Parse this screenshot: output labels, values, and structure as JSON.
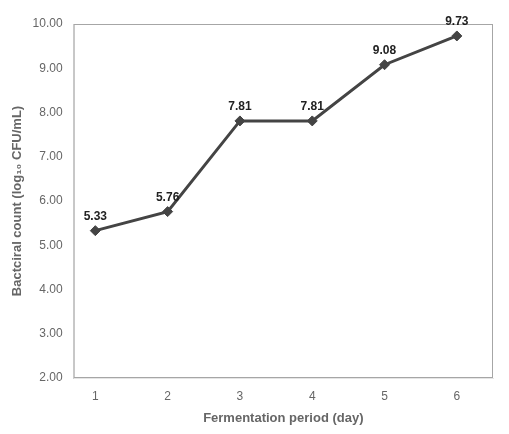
{
  "chart_data": {
    "type": "line",
    "x": [
      1,
      2,
      3,
      4,
      5,
      6
    ],
    "values": [
      5.33,
      5.76,
      7.81,
      7.81,
      9.08,
      9.73
    ],
    "xlabel": "Fermentation period (day)",
    "ylabel": "Bactciral count (log₁₀ CFU/mL)",
    "xlim": [
      0.7,
      6.5
    ],
    "ylim": [
      2.0,
      10.0
    ],
    "xticks": [
      1,
      2,
      3,
      4,
      5,
      6
    ],
    "yticks": [
      {
        "value": 2.0,
        "label": "2.00"
      },
      {
        "value": 3.0,
        "label": "3.00"
      },
      {
        "value": 4.0,
        "label": "4.00"
      },
      {
        "value": 5.0,
        "label": "5.00"
      },
      {
        "value": 6.0,
        "label": "6.00"
      },
      {
        "value": 7.0,
        "label": "7.00"
      },
      {
        "value": 8.0,
        "label": "8.00"
      },
      {
        "value": 9.0,
        "label": "9.00"
      },
      {
        "value": 10.0,
        "label": "10.00"
      }
    ],
    "color": "#444444",
    "marker": "diamond",
    "line_style": "solid",
    "grid": false,
    "data_labels": true
  }
}
